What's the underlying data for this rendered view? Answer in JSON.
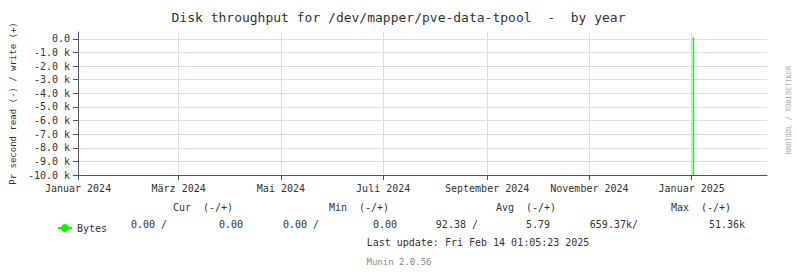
{
  "chart_data": {
    "type": "line",
    "title": "Disk throughput for /dev/mapper/pve-data-tpool  -  by year",
    "ylabel": "Pr second read (-) / write (+)",
    "series": [
      {
        "name": "Bytes",
        "color": "#00ff00",
        "x": [
          1735776000,
          1735776000
        ],
        "values": [
          -10000,
          120
        ]
      }
    ],
    "xlim": [
      1704067200,
      1739570400
    ],
    "xticks": [
      {
        "value": 1704067200,
        "label": "Januar 2024"
      },
      {
        "value": 1709251200,
        "label": "März 2024"
      },
      {
        "value": 1714521600,
        "label": "Mai 2024"
      },
      {
        "value": 1719792000,
        "label": "Juli 2024"
      },
      {
        "value": 1725148800,
        "label": "September 2024"
      },
      {
        "value": 1730419200,
        "label": "November 2024"
      },
      {
        "value": 1735689600,
        "label": "Januar 2025"
      }
    ],
    "ylim": [
      -10000,
      500
    ],
    "yticks": [
      {
        "value": 0,
        "label": "0.0"
      },
      {
        "value": -1000,
        "label": "-1.0 k"
      },
      {
        "value": -2000,
        "label": "-2.0 k"
      },
      {
        "value": -3000,
        "label": "-3.0 k"
      },
      {
        "value": -4000,
        "label": "-4.0 k"
      },
      {
        "value": -5000,
        "label": "-5.0 k"
      },
      {
        "value": -6000,
        "label": "-6.0 k"
      },
      {
        "value": -7000,
        "label": "-7.0 k"
      },
      {
        "value": -8000,
        "label": "-8.0 k"
      },
      {
        "value": -9000,
        "label": "-9.0 k"
      },
      {
        "value": -10000,
        "label": "-10.0 k"
      }
    ],
    "grid": true,
    "legend": "bottom",
    "annotations": [
      "Cur  (-/+)",
      "Min  (-/+)",
      "Avg  (-/+)",
      "Max  (-/+)",
      "0.00 /",
      "0.00",
      "0.00 /",
      "0.00",
      "92.38 /",
      "5.79",
      "659.37k/",
      "51.36k",
      "Last update: Fri Feb 14 01:05:23 2025",
      "Munin 2.0.56",
      "RRDTOOL / TOBIOETIKER"
    ]
  }
}
